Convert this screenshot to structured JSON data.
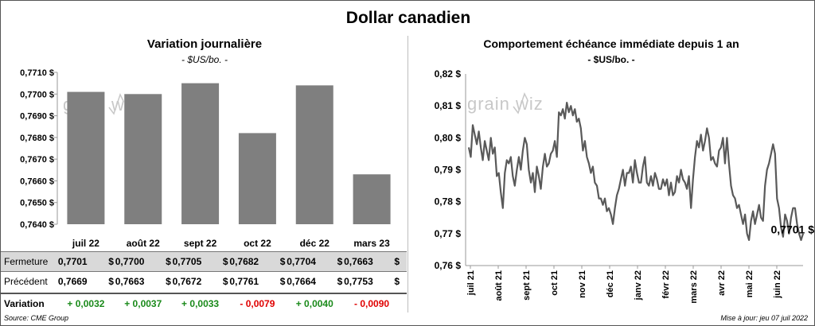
{
  "title": "Dollar canadien",
  "watermark": "grainwiz",
  "source": "Source: CME Group",
  "updated": "Mise à jour: jeu 07 juil 2022",
  "left_panel": {
    "title": "Variation  journalière",
    "subtitle": "- $US/bo. -",
    "table": {
      "row_labels": [
        "Fermeture",
        "Précédent",
        "Variation"
      ],
      "currency": "$",
      "fermeture": [
        "0,7701",
        "0,7700",
        "0,7705",
        "0,7682",
        "0,7704",
        "0,7663"
      ],
      "precedent": [
        "0,7669",
        "0,7663",
        "0,7672",
        "0,7761",
        "0,7664",
        "0,7753"
      ],
      "variation": [
        "+ 0,0032",
        "+ 0,0037",
        "+ 0,0033",
        "- 0,0079",
        "+ 0,0040",
        "- 0,0090"
      ],
      "colors": {
        "positive": "#1a8a1a",
        "negative": "#e00000",
        "fermeture_bg": "#d9d9d9"
      }
    }
  },
  "right_panel": {
    "title": "Comportement échéance immédiate depuis 1 an",
    "subtitle": "- $US/bo. -",
    "last_label": "0,7701 $"
  },
  "chart_data": [
    {
      "type": "bar",
      "categories": [
        "juil 22",
        "août 22",
        "sept 22",
        "oct 22",
        "déc 22",
        "mars 23"
      ],
      "values": [
        0.7701,
        0.77,
        0.7705,
        0.7682,
        0.7704,
        0.7663
      ],
      "ylim": [
        0.764,
        0.771
      ],
      "yticks": [
        0.764,
        0.765,
        0.766,
        0.767,
        0.768,
        0.769,
        0.77,
        0.771
      ],
      "ytick_labels": [
        "0,7640 $",
        "0,7650 $",
        "0,7660 $",
        "0,7670 $",
        "0,7680 $",
        "0,7690 $",
        "0,7700 $",
        "0,7710 $"
      ],
      "bar_color": "#7f7f7f"
    },
    {
      "type": "line",
      "ylim": [
        0.76,
        0.82
      ],
      "yticks": [
        0.76,
        0.77,
        0.78,
        0.79,
        0.8,
        0.81,
        0.82
      ],
      "ytick_labels": [
        "0,76 $",
        "0,77 $",
        "0,78 $",
        "0,79 $",
        "0,80 $",
        "0,81 $",
        "0,82 $"
      ],
      "x_labels": [
        "juil 21",
        "août 21",
        "sept 21",
        "oct 21",
        "nov 21",
        "déc 21",
        "janv 22",
        "févr 22",
        "mars 22",
        "avr 22",
        "mai 22",
        "juin 22"
      ],
      "line_color": "#595959",
      "values": [
        0.797,
        0.794,
        0.804,
        0.801,
        0.798,
        0.802,
        0.797,
        0.793,
        0.799,
        0.796,
        0.793,
        0.8,
        0.795,
        0.797,
        0.788,
        0.789,
        0.783,
        0.778,
        0.789,
        0.793,
        0.792,
        0.794,
        0.788,
        0.785,
        0.79,
        0.794,
        0.79,
        0.796,
        0.8,
        0.798,
        0.79,
        0.786,
        0.789,
        0.783,
        0.791,
        0.788,
        0.784,
        0.791,
        0.795,
        0.791,
        0.792,
        0.795,
        0.796,
        0.799,
        0.794,
        0.808,
        0.807,
        0.809,
        0.806,
        0.811,
        0.808,
        0.81,
        0.807,
        0.809,
        0.805,
        0.806,
        0.803,
        0.796,
        0.799,
        0.794,
        0.792,
        0.789,
        0.791,
        0.786,
        0.785,
        0.781,
        0.781,
        0.779,
        0.781,
        0.777,
        0.778,
        0.776,
        0.773,
        0.778,
        0.782,
        0.784,
        0.787,
        0.79,
        0.785,
        0.789,
        0.789,
        0.791,
        0.786,
        0.793,
        0.789,
        0.786,
        0.786,
        0.791,
        0.794,
        0.786,
        0.785,
        0.788,
        0.785,
        0.789,
        0.787,
        0.784,
        0.784,
        0.787,
        0.785,
        0.787,
        0.782,
        0.786,
        0.782,
        0.783,
        0.788,
        0.786,
        0.79,
        0.787,
        0.786,
        0.784,
        0.788,
        0.778,
        0.787,
        0.794,
        0.799,
        0.797,
        0.801,
        0.796,
        0.799,
        0.803,
        0.8,
        0.793,
        0.794,
        0.792,
        0.791,
        0.796,
        0.797,
        0.8,
        0.792,
        0.8,
        0.792,
        0.785,
        0.782,
        0.781,
        0.778,
        0.779,
        0.776,
        0.773,
        0.776,
        0.77,
        0.768,
        0.774,
        0.777,
        0.773,
        0.776,
        0.779,
        0.775,
        0.774,
        0.785,
        0.79,
        0.792,
        0.795,
        0.798,
        0.795,
        0.781,
        0.778,
        0.772,
        0.769,
        0.776,
        0.774,
        0.77,
        0.775,
        0.778,
        0.778,
        0.773,
        0.77,
        0.768,
        0.77
      ]
    }
  ]
}
